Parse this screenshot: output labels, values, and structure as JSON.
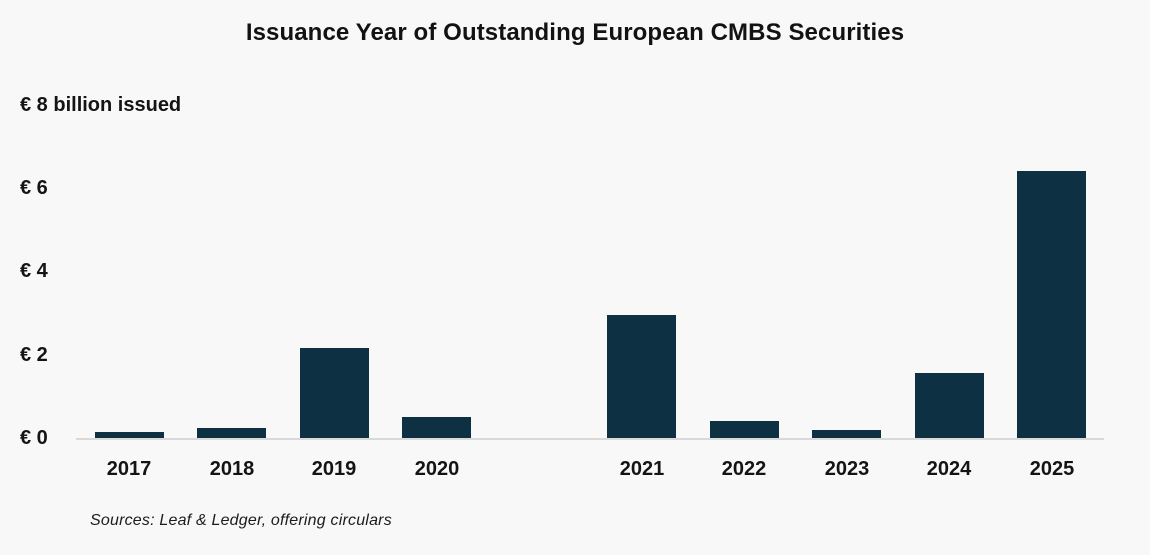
{
  "title": "Issuance Year of Outstanding European CMBS Securities",
  "source_note": "Sources: Leaf & Ledger, offering circulars",
  "colors": {
    "background": "#f8f8f8",
    "bar": "#0d3043",
    "axis_line": "#d9d9d9",
    "text": "#141414"
  },
  "chart_data": {
    "type": "bar",
    "title": "Issuance Year of Outstanding European CMBS Securities",
    "unit": "EUR billion issued",
    "categories": [
      "2017",
      "2018",
      "2019",
      "2020",
      "",
      "2021",
      "2022",
      "2023",
      "2024",
      "2025"
    ],
    "values": [
      0.15,
      0.25,
      2.15,
      0.5,
      null,
      2.95,
      0.4,
      0.2,
      1.55,
      6.4
    ],
    "y_ticks": [
      {
        "value": 0,
        "label": "€ 0"
      },
      {
        "value": 2,
        "label": "€ 2"
      },
      {
        "value": 4,
        "label": "€ 4"
      },
      {
        "value": 6,
        "label": "€ 6"
      },
      {
        "value": 8,
        "label": "€ 8 billion issued"
      }
    ],
    "ylim": [
      0,
      8
    ],
    "grid": false,
    "legend": false,
    "note": "empty category slot between 2020 and 2021 renders as a gap"
  }
}
